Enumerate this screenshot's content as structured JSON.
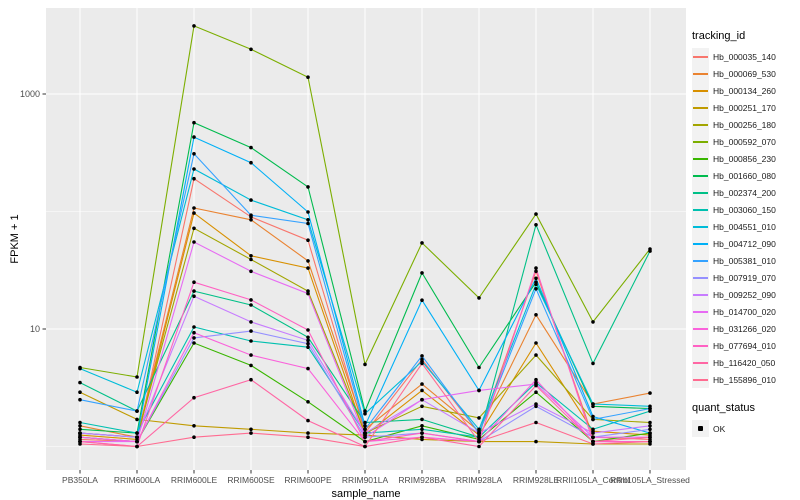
{
  "figure": {
    "bg": "#FFFFFF",
    "panel_bg": "#EBEBEB",
    "grid_color": "#FFFFFF",
    "tick_color": "#333333",
    "tick_label_color": "#4D4D4D",
    "point_color": "#000000",
    "legend_key_bg": "#F2F2F2"
  },
  "chart_data": {
    "type": "line",
    "title": "",
    "xlabel": "sample_name",
    "ylabel": "FPKM + 1",
    "y_scale": "log10",
    "y_ticks": [
      10,
      1000
    ],
    "y_tick_labels": [
      "10",
      "1000"
    ],
    "y_minor_gridlines": [
      1,
      100
    ],
    "ylim": [
      0.63,
      5500
    ],
    "grid": true,
    "legend_position": "right",
    "legend_title": "tracking_id",
    "categories": [
      "PB350LA",
      "RRIM600LA",
      "RRIM600LE",
      "RRIM600SE",
      "RRIM600PE",
      "RRIM901LA",
      "RRIM928BA",
      "RRIM928LA",
      "RRIM928LE",
      "RRII105LA_Control",
      "RRII105LA_Stressed"
    ],
    "series": [
      {
        "name": "Hb_000035_140",
        "color": "#F8766D",
        "values": [
          1.15,
          1.1,
          190,
          90,
          57,
          1.3,
          5.5,
          1.3,
          31,
          1.2,
          1.15
        ]
      },
      {
        "name": "Hb_000069_530",
        "color": "#EA8331",
        "values": [
          1.5,
          1.2,
          107,
          85,
          38,
          1.4,
          3.4,
          1.35,
          13.2,
          2.3,
          2.85
        ]
      },
      {
        "name": "Hb_000134_260",
        "color": "#D89000",
        "values": [
          1.25,
          1.15,
          97,
          42,
          33,
          1.25,
          3.0,
          1.25,
          7.6,
          1.35,
          1.25
        ]
      },
      {
        "name": "Hb_000251_170",
        "color": "#C09B00",
        "values": [
          2.9,
          1.7,
          1.5,
          1.4,
          1.3,
          1.25,
          1.15,
          1.1,
          1.1,
          1.05,
          1.05
        ]
      },
      {
        "name": "Hb_000256_180",
        "color": "#A3A500",
        "values": [
          1.3,
          1.2,
          72,
          39,
          21,
          1.3,
          2.2,
          1.75,
          6.0,
          1.7,
          1.6
        ]
      },
      {
        "name": "Hb_000592_070",
        "color": "#7CAE00",
        "values": [
          4.7,
          3.9,
          3800,
          2400,
          1390,
          5.0,
          54,
          18.4,
          95,
          11.5,
          48
        ]
      },
      {
        "name": "Hb_000856_230",
        "color": "#39B600",
        "values": [
          1.2,
          1.1,
          7.6,
          4.9,
          2.4,
          1.1,
          1.5,
          1.15,
          2.9,
          1.1,
          1.3
        ]
      },
      {
        "name": "Hb_001660_080",
        "color": "#00BB4E",
        "values": [
          1.4,
          1.3,
          570,
          350,
          162,
          2.0,
          30,
          4.7,
          25,
          2.2,
          2.1
        ]
      },
      {
        "name": "Hb_002374_200",
        "color": "#00C087",
        "values": [
          3.5,
          2.0,
          21,
          16,
          8.5,
          1.6,
          1.7,
          1.2,
          77,
          5.1,
          46
        ]
      },
      {
        "name": "Hb_003060_150",
        "color": "#00C0AF",
        "values": [
          1.6,
          1.3,
          10.4,
          7.9,
          7.0,
          1.3,
          1.4,
          1.2,
          3.5,
          1.4,
          2.0
        ]
      },
      {
        "name": "Hb_004551_010",
        "color": "#00BCD8",
        "values": [
          4.6,
          2.9,
          230,
          125,
          85,
          1.9,
          5.3,
          1.4,
          24,
          2.3,
          2.2
        ]
      },
      {
        "name": "Hb_004712_090",
        "color": "#00B0F6",
        "values": [
          1.3,
          1.2,
          430,
          260,
          99,
          1.5,
          17.6,
          3.0,
          27,
          1.8,
          1.3
        ]
      },
      {
        "name": "Hb_005381_010",
        "color": "#35A2FF",
        "values": [
          2.5,
          2.0,
          310,
          93,
          79,
          1.4,
          5.9,
          1.3,
          22,
          1.7,
          2.1
        ]
      },
      {
        "name": "Hb_007919_070",
        "color": "#9590FF",
        "values": [
          1.2,
          1.1,
          8.4,
          9.6,
          7.5,
          1.2,
          1.3,
          1.1,
          2.2,
          1.2,
          1.4
        ]
      },
      {
        "name": "Hb_009252_090",
        "color": "#C77CFF",
        "values": [
          1.3,
          1.2,
          19,
          11.5,
          8.0,
          1.3,
          2.5,
          1.3,
          2.3,
          1.3,
          1.5
        ]
      },
      {
        "name": "Hb_014700_020",
        "color": "#E76BF3",
        "values": [
          1.1,
          1.1,
          55,
          31,
          20,
          1.2,
          2.5,
          3.0,
          3.4,
          1.2,
          1.2
        ]
      },
      {
        "name": "Hb_031266_020",
        "color": "#FA62DB",
        "values": [
          1.2,
          1.1,
          9.3,
          6.0,
          4.6,
          1.1,
          1.2,
          1.1,
          3.7,
          1.1,
          1.1
        ]
      },
      {
        "name": "Hb_077694_010",
        "color": "#FF61C3",
        "values": [
          1.1,
          1.0,
          25,
          17.7,
          9.8,
          1.1,
          1.3,
          1.1,
          33,
          1.1,
          1.1
        ]
      },
      {
        "name": "Hb_116420_050",
        "color": "#FF67A4",
        "values": [
          1.1,
          1.0,
          2.6,
          3.7,
          1.66,
          1.0,
          1.2,
          1.0,
          3.3,
          1.1,
          1.2
        ]
      },
      {
        "name": "Hb_155896_010",
        "color": "#FF6C91",
        "values": [
          1.05,
          1.0,
          1.2,
          1.3,
          1.2,
          1.0,
          5.1,
          1.1,
          1.6,
          1.05,
          1.1
        ]
      }
    ],
    "quant_legend": {
      "title": "quant_status",
      "items": [
        {
          "label": "OK",
          "marker_color": "#000000"
        }
      ]
    }
  }
}
